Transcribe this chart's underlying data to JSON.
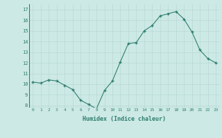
{
  "x": [
    0,
    1,
    2,
    3,
    4,
    5,
    6,
    7,
    8,
    9,
    10,
    11,
    12,
    13,
    14,
    15,
    16,
    17,
    18,
    19,
    20,
    21,
    22,
    23
  ],
  "y": [
    10.2,
    10.1,
    10.4,
    10.3,
    9.9,
    9.5,
    8.5,
    8.1,
    7.7,
    9.4,
    10.3,
    12.1,
    13.8,
    13.9,
    15.0,
    15.5,
    16.4,
    16.6,
    16.8,
    16.1,
    14.9,
    13.2,
    12.4,
    12.0
  ],
  "xlabel": "Humidex (Indice chaleur)",
  "ylim": [
    7.8,
    17.5
  ],
  "xlim": [
    -0.5,
    23.5
  ],
  "line_color": "#2e7d6e",
  "bg_color": "#cce9e5",
  "grid_color": "#b8d8d4",
  "yticks": [
    8,
    9,
    10,
    11,
    12,
    13,
    14,
    15,
    16,
    17
  ],
  "xticks": [
    0,
    1,
    2,
    3,
    4,
    5,
    6,
    7,
    8,
    9,
    10,
    11,
    12,
    13,
    14,
    15,
    16,
    17,
    18,
    19,
    20,
    21,
    22,
    23
  ]
}
